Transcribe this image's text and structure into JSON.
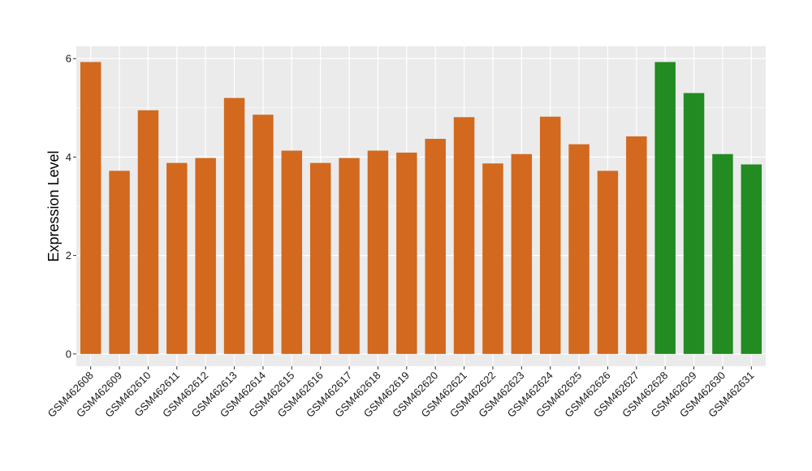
{
  "chart_data": {
    "type": "bar",
    "title": "",
    "xlabel": "",
    "ylabel": "Expression Level",
    "ylim": [
      -0.25,
      6.25
    ],
    "yticks": [
      0,
      2,
      4,
      6
    ],
    "grid": true,
    "categories": [
      "GSM462608",
      "GSM462609",
      "GSM462610",
      "GSM462611",
      "GSM462612",
      "GSM462613",
      "GSM462614",
      "GSM462615",
      "GSM462616",
      "GSM462617",
      "GSM462618",
      "GSM462619",
      "GSM462620",
      "GSM462621",
      "GSM462622",
      "GSM462623",
      "GSM462624",
      "GSM462625",
      "GSM462626",
      "GSM462627",
      "GSM462628",
      "GSM462629",
      "GSM462630",
      "GSM462631"
    ],
    "values": [
      5.93,
      3.72,
      4.95,
      3.88,
      3.98,
      5.2,
      4.86,
      4.13,
      3.88,
      3.98,
      4.13,
      4.09,
      4.37,
      4.81,
      3.87,
      4.06,
      4.82,
      4.26,
      3.72,
      4.42,
      5.93,
      5.3,
      4.06,
      3.85
    ],
    "bar_colors": [
      "#d2691e",
      "#d2691e",
      "#d2691e",
      "#d2691e",
      "#d2691e",
      "#d2691e",
      "#d2691e",
      "#d2691e",
      "#d2691e",
      "#d2691e",
      "#d2691e",
      "#d2691e",
      "#d2691e",
      "#d2691e",
      "#d2691e",
      "#d2691e",
      "#d2691e",
      "#d2691e",
      "#d2691e",
      "#d2691e",
      "#228b22",
      "#228b22",
      "#228b22",
      "#228b22"
    ],
    "panel_background": "#ebebeb",
    "grid_color": "#ffffff"
  }
}
